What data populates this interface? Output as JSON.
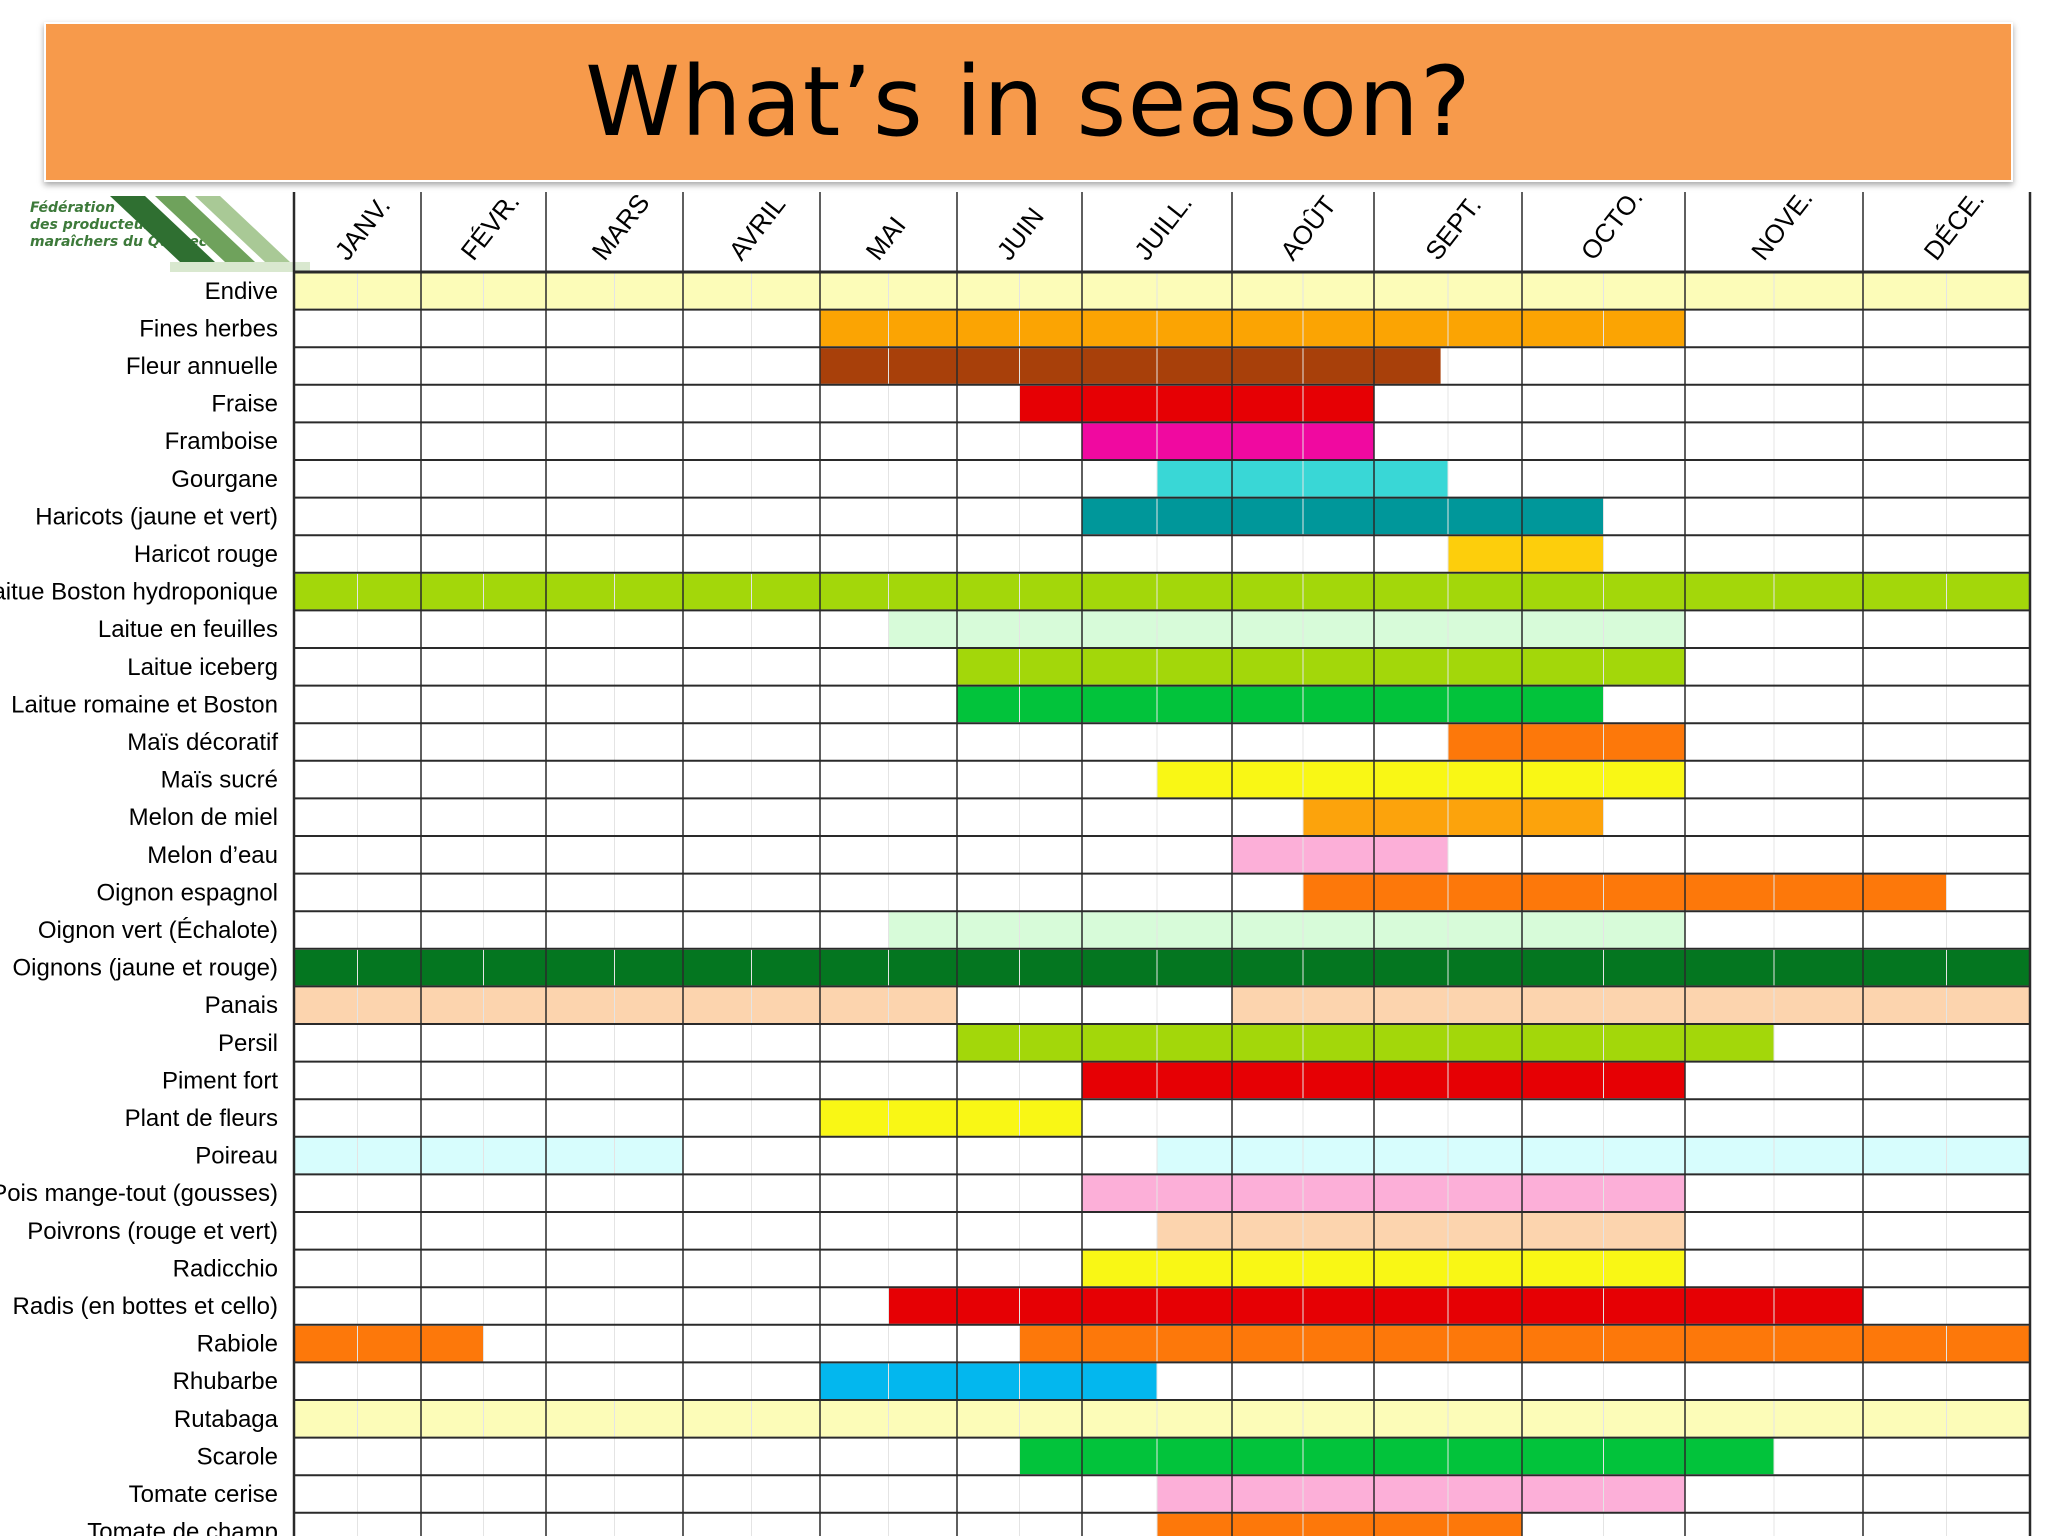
{
  "title": "What’s in season?",
  "logo": {
    "text": "Fédération\ndes producteurs\nmaraîchers du Québec",
    "stripe_colors": [
      "#2f6f31",
      "#6fa25c",
      "#a9c996",
      "#d9e8cf"
    ]
  },
  "chart_data": {
    "type": "gantt",
    "months": [
      "JANV.",
      "FÉVR.",
      "MARS",
      "AVRIL",
      "MAI",
      "JUIN",
      "JUILL.",
      "AOÛT",
      "SEPT.",
      "OCTO.",
      "NOVE.",
      "DÉCE."
    ],
    "rows": [
      {
        "label": "Endive",
        "color": "#fcfcb8",
        "start": 0,
        "end": 12
      },
      {
        "label": "Fines herbes",
        "color": "#fba403",
        "start": 4,
        "end": 10
      },
      {
        "label": "Fleur annuelle",
        "color": "#a8400a",
        "start": 4,
        "end": 8.45
      },
      {
        "label": "Fraise",
        "color": "#e60004",
        "start": 5.5,
        "end": 8
      },
      {
        "label": "Framboise",
        "color": "#f009a0",
        "start": 6,
        "end": 8
      },
      {
        "label": "Gourgane",
        "color": "#39d7d6",
        "start": 6.5,
        "end": 8.5
      },
      {
        "label": "Haricots (jaune et vert)",
        "color": "#00979a",
        "start": 6,
        "end": 9.5
      },
      {
        "label": "Haricot rouge",
        "color": "#fdce0c",
        "start": 8.5,
        "end": 9.5
      },
      {
        "label": "Laitue Boston hydroponique",
        "color": "#a3d70a",
        "start": 0,
        "end": 12
      },
      {
        "label": "Laitue en feuilles",
        "color": "#d7fbd9",
        "start": 4.5,
        "end": 10
      },
      {
        "label": "Laitue iceberg",
        "color": "#a3d70a",
        "start": 5,
        "end": 10
      },
      {
        "label": "Laitue romaine et Boston",
        "color": "#02c33b",
        "start": 5,
        "end": 9.5
      },
      {
        "label": "Maïs décoratif",
        "color": "#fd780a",
        "start": 8.5,
        "end": 10
      },
      {
        "label": "Maïs sucré",
        "color": "#f9f715",
        "start": 6.5,
        "end": 10
      },
      {
        "label": "Melon de miel",
        "color": "#fca30c",
        "start": 7.5,
        "end": 9.5
      },
      {
        "label": "Melon d’eau",
        "color": "#fcafd8",
        "start": 7,
        "end": 8.5
      },
      {
        "label": "Oignon espagnol",
        "color": "#fd780a",
        "start": 7.5,
        "end": 11.5
      },
      {
        "label": "Oignon vert (Échalote)",
        "color": "#d7fbd9",
        "start": 4.5,
        "end": 10
      },
      {
        "label": "Oignons (jaune et rouge)",
        "color": "#047620",
        "start": 0,
        "end": 12
      },
      {
        "label": "Panais",
        "color": "#fcd4ae",
        "segments": [
          [
            0,
            5
          ],
          [
            7,
            12
          ]
        ]
      },
      {
        "label": "Persil",
        "color": "#a3d70a",
        "start": 5,
        "end": 10.5
      },
      {
        "label": "Piment fort",
        "color": "#e60004",
        "start": 6,
        "end": 10
      },
      {
        "label": "Plant de fleurs",
        "color": "#f9f715",
        "start": 4,
        "end": 6
      },
      {
        "label": "Poireau",
        "color": "#d7fdfd",
        "segments": [
          [
            0,
            3
          ],
          [
            6.5,
            12
          ]
        ]
      },
      {
        "label": "Pois mange-tout (gousses)",
        "color": "#fcafd8",
        "start": 6,
        "end": 10
      },
      {
        "label": "Poivrons (rouge et vert)",
        "color": "#fcd4ae",
        "start": 6.5,
        "end": 10
      },
      {
        "label": "Radicchio",
        "color": "#f9f715",
        "start": 6,
        "end": 10
      },
      {
        "label": "Radis (en bottes et cello)",
        "color": "#e60004",
        "start": 4.5,
        "end": 11
      },
      {
        "label": "Rabiole",
        "color": "#fd780a",
        "segments": [
          [
            0,
            1.5
          ],
          [
            5.5,
            12
          ]
        ]
      },
      {
        "label": "Rhubarbe",
        "color": "#03b7ee",
        "start": 4,
        "end": 6.5
      },
      {
        "label": "Rutabaga",
        "color": "#fcfcb8",
        "start": 0,
        "end": 12
      },
      {
        "label": "Scarole",
        "color": "#02c33b",
        "start": 5.5,
        "end": 10.5
      },
      {
        "label": "Tomate cerise",
        "color": "#fcafd8",
        "start": 6.5,
        "end": 10
      },
      {
        "label": "Tomate de champ",
        "color": "#fd780a",
        "start": 6.5,
        "end": 9
      }
    ]
  }
}
